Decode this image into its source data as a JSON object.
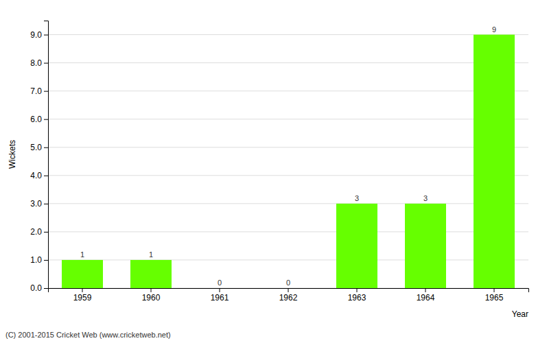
{
  "chart_data": {
    "type": "bar",
    "categories": [
      "1959",
      "1960",
      "1961",
      "1962",
      "1963",
      "1964",
      "1965"
    ],
    "values": [
      1,
      1,
      0,
      0,
      3,
      3,
      9
    ],
    "color": "#66ff00",
    "xlabel": "Year",
    "ylabel": "Wickets",
    "ylim": [
      0,
      9.5
    ],
    "yticks": [
      {
        "value": 0.0,
        "label": "0.0"
      },
      {
        "value": 1.0,
        "label": "1.0"
      },
      {
        "value": 2.0,
        "label": "2.0"
      },
      {
        "value": 3.0,
        "label": "3.0"
      },
      {
        "value": 4.0,
        "label": "4.0"
      },
      {
        "value": 5.0,
        "label": "5.0"
      },
      {
        "value": 6.0,
        "label": "6.0"
      },
      {
        "value": 7.0,
        "label": "7.0"
      },
      {
        "value": 8.0,
        "label": "8.0"
      },
      {
        "value": 9.0,
        "label": "9.0"
      }
    ],
    "grid": true,
    "data_labels": true,
    "annotations": [
      "(C) 2001-2015 Cricket Web (www.cricketweb.net)"
    ]
  }
}
